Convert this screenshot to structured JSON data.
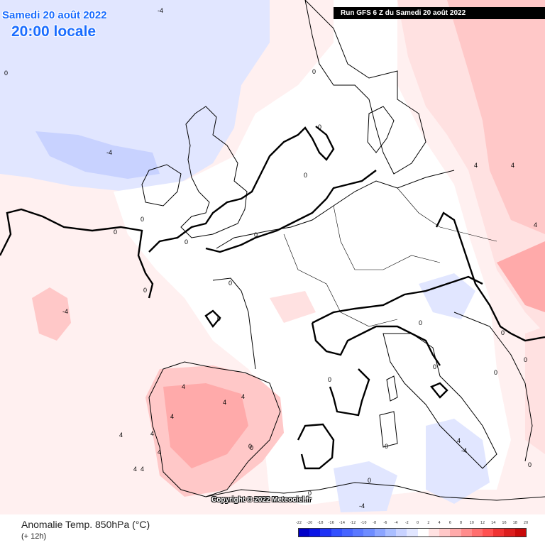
{
  "header": {
    "date": "Samedi 20 août 2022",
    "time": "20:00 locale"
  },
  "run_banner": "Run GFS 6 Z du Samedi 20 août 2022",
  "copyright": "Copyright © 2022 Meteociel.fr",
  "footer": {
    "variable": "Anomalie Temp. 850hPa (°C)",
    "lead": "(+ 12h)"
  },
  "legend": {
    "labels": [
      "-22",
      "-20",
      "-18",
      "-16",
      "-14",
      "-12",
      "-10",
      "-8",
      "-6",
      "-4",
      "-2",
      "0",
      "2",
      "4",
      "6",
      "8",
      "10",
      "12",
      "14",
      "16",
      "18",
      "20"
    ],
    "colors": [
      "#0000c8",
      "#0a14e6",
      "#1e32f5",
      "#3250ff",
      "#4664ff",
      "#5a78ff",
      "#6e8cff",
      "#8ca5ff",
      "#aabeff",
      "#c8d2ff",
      "#e1e6ff",
      "#ffffff",
      "#ffe1e1",
      "#ffc8c8",
      "#ffaaaa",
      "#ff8c8c",
      "#ff6e6e",
      "#ff5050",
      "#f03232",
      "#dc1e1e",
      "#c80a0a"
    ]
  },
  "colors": {
    "title_blue": "#1a6cff",
    "neutral_pale_pink": "#fff0f0",
    "pale_blue": "#e1e6ff",
    "mid_blue": "#c8d2ff",
    "pale_red": "#ffe1e1",
    "mid_red": "#ffc8c8"
  },
  "contour_labels": [
    "-4",
    "0",
    "-4",
    "0",
    "0",
    "0",
    "0",
    "-4",
    "0",
    "0",
    "0",
    "0",
    "4",
    "4",
    "0",
    "-4",
    "0",
    "4",
    "4",
    "4",
    "4",
    "0",
    "4",
    "4",
    "4",
    "4",
    "0",
    "0",
    "-4",
    "0",
    "0",
    "4",
    "4",
    "0",
    "0",
    "0",
    "0",
    "0",
    "4",
    "0",
    "0"
  ]
}
